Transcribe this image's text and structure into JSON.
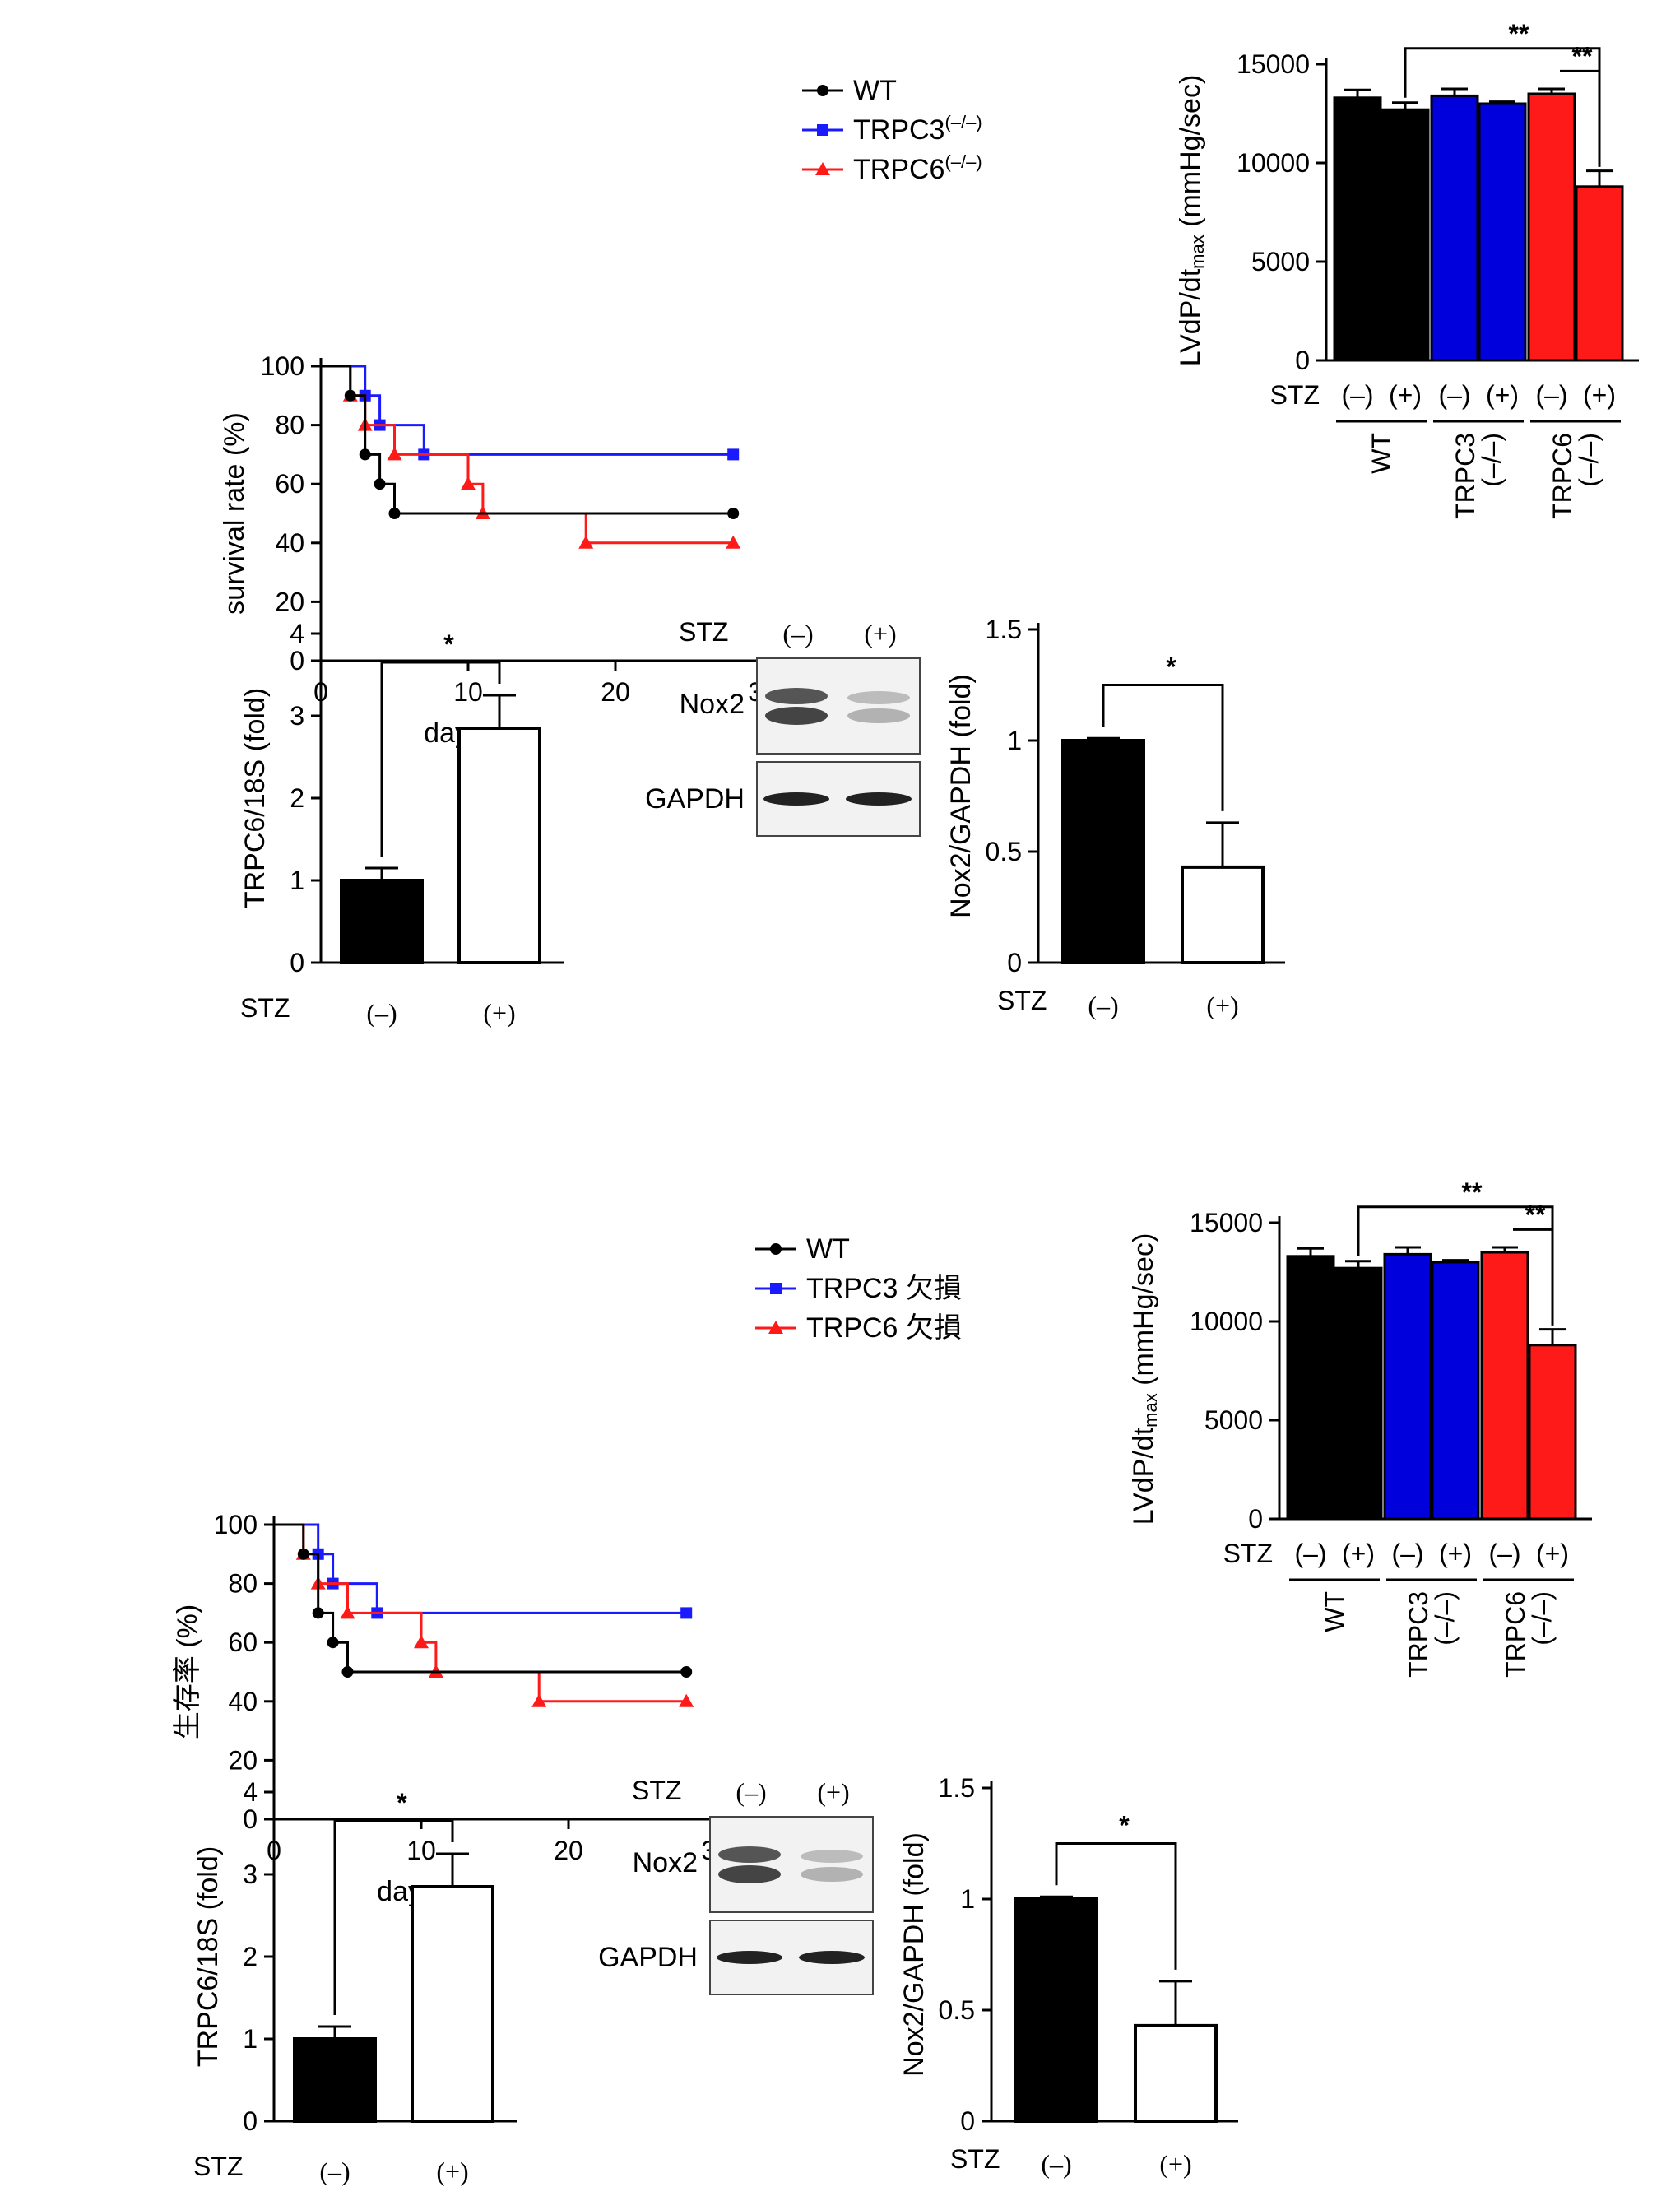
{
  "panels": [
    {
      "id": "top",
      "survival": {
        "ylabel": "survival rate (%)",
        "xlabel": "days",
        "xticks": [
          "0",
          "10",
          "20",
          "30"
        ],
        "yticks": [
          "0",
          "20",
          "40",
          "60",
          "80",
          "100"
        ],
        "legend": [
          {
            "label": "WT",
            "sup": ""
          },
          {
            "label": "TRPC3",
            "sup": "(–/–)"
          },
          {
            "label": "TRPC6",
            "sup": "(–/–)"
          }
        ]
      },
      "lvdp": {
        "ylabel": "LVdP/dt",
        "ylabel_sub": "max",
        "ylabel_unit": " (mmHg/sec)",
        "yticks": [
          "0",
          "5000",
          "10000",
          "15000"
        ],
        "stz_label": "STZ",
        "treat_labels": [
          "(–)",
          "(+)",
          "(–)",
          "(+)",
          "(–)",
          "(+)"
        ],
        "group_labels": [
          [
            "WT"
          ],
          [
            "TRPC3",
            "(–/–)"
          ],
          [
            "TRPC6",
            "(–/–)"
          ]
        ],
        "sig_long": "**",
        "sig_short": "**"
      },
      "trpc6": {
        "ylabel": "TRPC6/18S (fold)",
        "yticks": [
          "0",
          "1",
          "2",
          "3",
          "4"
        ],
        "stz_label": "STZ",
        "treat_labels": [
          "(–)",
          "(+)"
        ],
        "sig": "*"
      },
      "blot": {
        "stz_label": "STZ",
        "lane_labels": [
          "(–)",
          "(+)"
        ],
        "bands": [
          "Nox2",
          "GAPDH"
        ]
      },
      "nox2": {
        "ylabel": "Nox2/GAPDH  (fold)",
        "yticks": [
          "0",
          "0.5",
          "1",
          "1.5"
        ],
        "stz_label": "STZ",
        "treat_labels": [
          "(–)",
          "(+)"
        ],
        "sig": "*"
      }
    },
    {
      "id": "bottom",
      "survival": {
        "ylabel": "生存率 (%)",
        "xlabel": "days",
        "xticks": [
          "0",
          "10",
          "20",
          "30"
        ],
        "yticks": [
          "0",
          "20",
          "40",
          "60",
          "80",
          "100"
        ],
        "legend": [
          {
            "label": "WT",
            "sup": ""
          },
          {
            "label": "TRPC3 欠損",
            "sup": ""
          },
          {
            "label": "TRPC6 欠損",
            "sup": ""
          }
        ]
      },
      "lvdp": {
        "ylabel": "LVdP/dt",
        "ylabel_sub": "max",
        "ylabel_unit": " (mmHg/sec)",
        "yticks": [
          "0",
          "5000",
          "10000",
          "15000"
        ],
        "stz_label": "STZ",
        "treat_labels": [
          "(–)",
          "(+)",
          "(–)",
          "(+)",
          "(–)",
          "(+)"
        ],
        "group_labels": [
          [
            "WT"
          ],
          [
            "TRPC3",
            "(–/–)"
          ],
          [
            "TRPC6",
            "(–/–)"
          ]
        ],
        "sig_long": "**",
        "sig_short": "**"
      },
      "trpc6": {
        "ylabel": "TRPC6/18S (fold)",
        "yticks": [
          "0",
          "1",
          "2",
          "3",
          "4"
        ],
        "stz_label": "STZ",
        "treat_labels": [
          "(–)",
          "(+)"
        ],
        "sig": "*"
      },
      "blot": {
        "stz_label": "STZ",
        "lane_labels": [
          "(–)",
          "(+)"
        ],
        "bands": [
          "Nox2",
          "GAPDH"
        ]
      },
      "nox2": {
        "ylabel": "Nox2/GAPDH  (fold)",
        "yticks": [
          "0",
          "0.5",
          "1",
          "1.5"
        ],
        "stz_label": "STZ",
        "treat_labels": [
          "(–)",
          "(+)"
        ],
        "sig": "*"
      }
    }
  ],
  "chart_data": [
    {
      "type": "line",
      "step": true,
      "xlabel": "days",
      "ylabel": "survival rate (%)",
      "xlim": [
        0,
        30
      ],
      "ylim": [
        0,
        100
      ],
      "series": [
        {
          "name": "WT",
          "color": "#000000",
          "marker": "circle",
          "x": [
            0,
            2,
            3,
            4,
            5,
            28
          ],
          "y": [
            100,
            90,
            70,
            60,
            50,
            50
          ]
        },
        {
          "name": "TRPC3(–/–)",
          "color": "#1a1aff",
          "marker": "square",
          "x": [
            0,
            3,
            4,
            7,
            28
          ],
          "y": [
            100,
            90,
            80,
            70,
            70
          ]
        },
        {
          "name": "TRPC6(–/–)",
          "color": "#ff1a1a",
          "marker": "triangle",
          "x": [
            0,
            2,
            3,
            5,
            10,
            11,
            18,
            28
          ],
          "y": [
            100,
            90,
            80,
            70,
            60,
            50,
            40,
            40
          ]
        }
      ]
    },
    {
      "type": "bar",
      "ylabel": "LVdP/dtmax (mmHg/sec)",
      "ylim": [
        0,
        15000
      ],
      "categories": [
        "WT STZ(–)",
        "WT STZ(+)",
        "TRPC3(–/–) STZ(–)",
        "TRPC3(–/–) STZ(+)",
        "TRPC6(–/–) STZ(–)",
        "TRPC6(–/–) STZ(+)"
      ],
      "values": [
        13300,
        12700,
        13400,
        13000,
        13500,
        8800
      ],
      "errors": [
        400,
        350,
        350,
        100,
        250,
        800
      ],
      "colors": [
        "#000000",
        "#000000",
        "#0000dd",
        "#0000dd",
        "#ff1a1a",
        "#ff1a1a"
      ],
      "annotations": [
        "** WT(+) vs TRPC6(+)",
        "** TRPC6(–) vs TRPC6(+)"
      ]
    },
    {
      "type": "bar",
      "ylabel": "TRPC6/18S (fold)",
      "ylim": [
        0,
        4
      ],
      "categories": [
        "STZ (–)",
        "STZ (+)"
      ],
      "values": [
        1.0,
        2.85
      ],
      "errors": [
        0.15,
        0.4
      ],
      "colors": [
        "#000000",
        "#ffffff"
      ],
      "annotations": [
        "*"
      ]
    },
    {
      "type": "bar",
      "ylabel": "Nox2/GAPDH (fold)",
      "ylim": [
        0,
        1.5
      ],
      "categories": [
        "STZ (–)",
        "STZ (+)"
      ],
      "values": [
        1.0,
        0.43
      ],
      "errors": [
        0.01,
        0.2
      ],
      "colors": [
        "#000000",
        "#ffffff"
      ],
      "annotations": [
        "*"
      ]
    }
  ]
}
